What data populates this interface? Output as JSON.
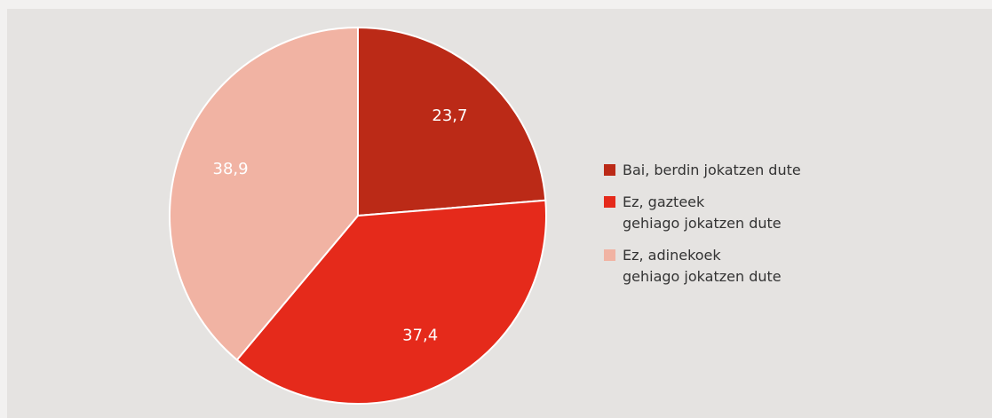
{
  "chart_data": {
    "type": "pie",
    "categories": [
      "Bai, berdin jokatzen dute",
      "Ez, gazteek\ngehiago jokatzen dute",
      "Ez, adinekoek\ngehiago jokatzen dute"
    ],
    "values": [
      23.7,
      37.4,
      38.9
    ],
    "value_labels": [
      "23,7",
      "37,4",
      "38,9"
    ],
    "colors": [
      "#bb2a17",
      "#e52a1b",
      "#f1b3a3"
    ],
    "legend": "right"
  }
}
